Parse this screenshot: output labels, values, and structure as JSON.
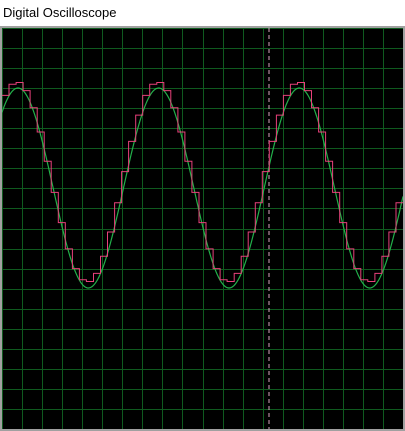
{
  "window": {
    "title": "Digital Oscilloscope"
  },
  "scope": {
    "colors": {
      "background": "#000000",
      "grid": "#0f5a1f",
      "trigger_marker": "#d7a7c0",
      "analog_trace": "#22b04a",
      "sampled_trace": "#e8407a"
    },
    "grid_divisions": {
      "x": 20,
      "y": 20
    },
    "signal": {
      "cycles_shown": 2.85,
      "amplitude_fraction": 0.5,
      "sample_steps_per_cycle": 20
    }
  }
}
